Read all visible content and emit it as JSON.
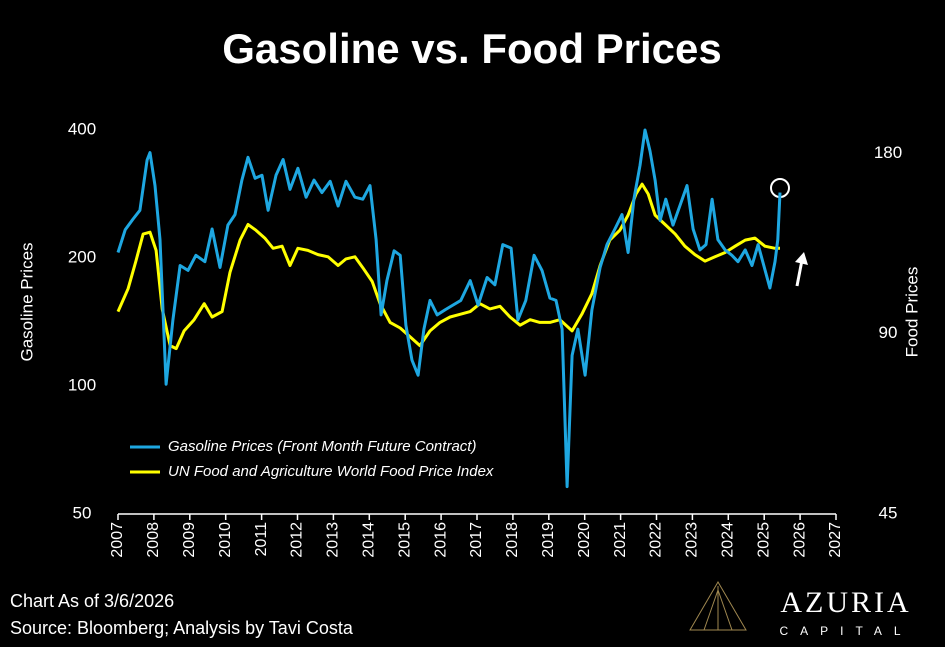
{
  "chart_data": {
    "type": "line",
    "title": "Gasoline vs. Food Prices",
    "ylabel": "Gasoline Prices",
    "y2label": "Food Prices",
    "footnote": "Chart As of 3/6/2026",
    "source": "Source: Bloomberg; Analysis by Tavi Costa",
    "logo": {
      "name": "AZURIA",
      "sub": "CAPITAL"
    },
    "yscale": "log",
    "y2scale": "log",
    "grid": false,
    "legend": "lower-left",
    "xlim": [
      2007,
      2027
    ],
    "xticks": [
      2007,
      2008,
      2009,
      2010,
      2011,
      2012,
      2013,
      2014,
      2015,
      2016,
      2017,
      2018,
      2019,
      2020,
      2021,
      2022,
      2023,
      2024,
      2025,
      2026,
      2027
    ],
    "ylim": [
      50,
      400
    ],
    "yticks": [
      50,
      100,
      200,
      400
    ],
    "y2lim": [
      45,
      197
    ],
    "y2ticks": [
      45,
      90,
      180
    ],
    "series": [
      {
        "name": "Gasoline Prices (Front Month Future Contract)",
        "color": "#1ea7e1",
        "axis": "y",
        "x": [
          2007.0,
          2007.2,
          2007.42,
          2007.61,
          2007.81,
          2007.89,
          2008.03,
          2008.17,
          2008.34,
          2008.53,
          2008.73,
          2008.95,
          2009.17,
          2009.42,
          2009.62,
          2009.84,
          2010.06,
          2010.26,
          2010.45,
          2010.62,
          2010.82,
          2011.01,
          2011.18,
          2011.4,
          2011.6,
          2011.79,
          2012.01,
          2012.24,
          2012.46,
          2012.68,
          2012.91,
          2013.13,
          2013.35,
          2013.6,
          2013.82,
          2014.02,
          2014.19,
          2014.33,
          2014.49,
          2014.69,
          2014.86,
          2015.02,
          2015.19,
          2015.36,
          2015.52,
          2015.69,
          2015.89,
          2016.11,
          2016.33,
          2016.55,
          2016.81,
          2017.03,
          2017.28,
          2017.5,
          2017.72,
          2017.95,
          2018.14,
          2018.36,
          2018.59,
          2018.81,
          2019.03,
          2019.2,
          2019.37,
          2019.51,
          2019.65,
          2019.81,
          2020.01,
          2020.2,
          2020.43,
          2020.62,
          2020.84,
          2021.04,
          2021.21,
          2021.37,
          2021.54,
          2021.68,
          2021.82,
          2021.96,
          2022.1,
          2022.26,
          2022.46,
          2022.65,
          2022.85,
          2023.02,
          2023.21,
          2023.38,
          2023.55,
          2023.71,
          2023.91,
          2024.1,
          2024.27,
          2024.47,
          2024.66,
          2024.83,
          2024.99,
          2025.16,
          2025.3,
          2025.38,
          2025.44
        ],
        "values": [
          206,
          233,
          247,
          259,
          340,
          354,
          296,
          221,
          101,
          143,
          192,
          187,
          203,
          196,
          234,
          190,
          239,
          253,
          305,
          345,
          308,
          313,
          259,
          313,
          341,
          290,
          325,
          278,
          305,
          285,
          303,
          265,
          303,
          278,
          275,
          296,
          221,
          147,
          177,
          208,
          203,
          139,
          115,
          106,
          136,
          159,
          147,
          151,
          155,
          159,
          177,
          155,
          180,
          173,
          215,
          211,
          143,
          159,
          203,
          187,
          161,
          159,
          136,
          58,
          118,
          136,
          106,
          151,
          190,
          215,
          234,
          253,
          206,
          275,
          330,
          400,
          357,
          305,
          245,
          275,
          239,
          265,
          296,
          234,
          209,
          215,
          275,
          221,
          209,
          203,
          196,
          209,
          192,
          215,
          192,
          170,
          196,
          221,
          285
        ]
      },
      {
        "name": "UN Food and Agriculture World Food Price Index",
        "color": "#ffff00",
        "axis": "y2",
        "x": [
          2007.0,
          2007.28,
          2007.5,
          2007.7,
          2007.89,
          2008.06,
          2008.23,
          2008.45,
          2008.62,
          2008.84,
          2009.12,
          2009.4,
          2009.62,
          2009.9,
          2010.12,
          2010.4,
          2010.62,
          2010.84,
          2011.09,
          2011.32,
          2011.57,
          2011.79,
          2012.01,
          2012.29,
          2012.57,
          2012.85,
          2013.13,
          2013.35,
          2013.6,
          2013.82,
          2014.08,
          2014.3,
          2014.58,
          2014.86,
          2015.13,
          2015.41,
          2015.69,
          2015.97,
          2016.25,
          2016.53,
          2016.81,
          2017.08,
          2017.36,
          2017.64,
          2017.92,
          2018.2,
          2018.48,
          2018.75,
          2019.03,
          2019.31,
          2019.65,
          2019.92,
          2020.2,
          2020.43,
          2020.7,
          2020.98,
          2021.21,
          2021.43,
          2021.6,
          2021.77,
          2021.96,
          2022.24,
          2022.52,
          2022.79,
          2023.07,
          2023.35,
          2023.63,
          2023.91,
          2024.19,
          2024.47,
          2024.74,
          2025.02,
          2025.3,
          2025.44
        ],
        "values": [
          98,
          107,
          119,
          132,
          133,
          124,
          99,
          86,
          85,
          91,
          95,
          101,
          96,
          98,
          114,
          129,
          137,
          134,
          130,
          125,
          126,
          117,
          125,
          124,
          122,
          121,
          117,
          120,
          121,
          116,
          110,
          101,
          94,
          92,
          89,
          86,
          91,
          94,
          96,
          97,
          98,
          101,
          99,
          100,
          96,
          93,
          95,
          94,
          94,
          95,
          91,
          97,
          105,
          117,
          129,
          134,
          142,
          154,
          160,
          154,
          142,
          137,
          132,
          126,
          122,
          119,
          121,
          123,
          126,
          129,
          130,
          126,
          125,
          125
        ]
      }
    ]
  }
}
